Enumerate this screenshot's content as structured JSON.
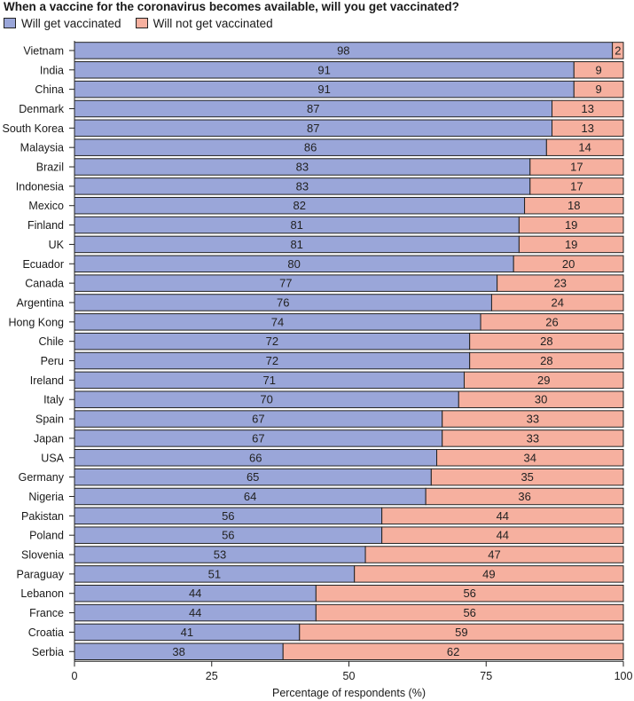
{
  "colors": {
    "vaccinated": "#9aa6d9",
    "not_vaccinated": "#f6b09f",
    "border": "#222222"
  },
  "chart_data": {
    "type": "bar",
    "orientation": "horizontal",
    "stacked": true,
    "title": "When a vaccine for the coronavirus becomes available, will you get vaccinated?",
    "xlabel": "Percentage of respondents (%)",
    "ylabel": "",
    "xlim": [
      0,
      100
    ],
    "xticks": [
      0,
      25,
      50,
      75,
      100
    ],
    "legend_position": "top-left",
    "grid": false,
    "categories": [
      "Vietnam",
      "India",
      "China",
      "Denmark",
      "South Korea",
      "Malaysia",
      "Brazil",
      "Indonesia",
      "Mexico",
      "Finland",
      "UK",
      "Ecuador",
      "Canada",
      "Argentina",
      "Hong Kong",
      "Chile",
      "Peru",
      "Ireland",
      "Italy",
      "Spain",
      "Japan",
      "USA",
      "Germany",
      "Nigeria",
      "Pakistan",
      "Poland",
      "Slovenia",
      "Paraguay",
      "Lebanon",
      "France",
      "Croatia",
      "Serbia"
    ],
    "series": [
      {
        "name": "Will get vaccinated",
        "values": [
          98,
          91,
          91,
          87,
          87,
          86,
          83,
          83,
          82,
          81,
          81,
          80,
          77,
          76,
          74,
          72,
          72,
          71,
          70,
          67,
          67,
          66,
          65,
          64,
          56,
          56,
          53,
          51,
          44,
          44,
          41,
          38
        ]
      },
      {
        "name": "Will not get vaccinated",
        "values": [
          2,
          9,
          9,
          13,
          13,
          14,
          17,
          17,
          18,
          19,
          19,
          20,
          23,
          24,
          26,
          28,
          28,
          29,
          30,
          33,
          33,
          34,
          35,
          36,
          44,
          44,
          47,
          49,
          56,
          56,
          59,
          62
        ]
      }
    ]
  }
}
